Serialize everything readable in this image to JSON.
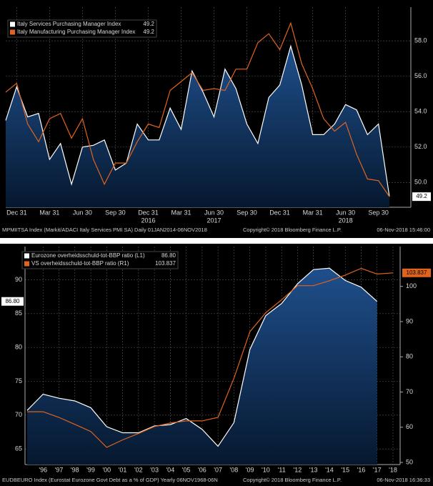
{
  "chart_data": [
    {
      "type": "line",
      "categories": [
        null,
        "Dec 31",
        null,
        null,
        "Mar 31",
        null,
        null,
        "Jun 30",
        null,
        null,
        "Sep 30",
        null,
        null,
        "Dec 31",
        null,
        null,
        "Mar 31",
        null,
        null,
        "Jun 30",
        null,
        null,
        "Sep 30",
        null,
        null,
        "Dec 31",
        null,
        null,
        "Mar 31",
        null,
        null,
        "Jun 30",
        null,
        null,
        "Sep 30",
        null
      ],
      "year_labels": [
        {
          "category": 13,
          "label": "2016"
        },
        {
          "category": 19,
          "label": "2017"
        },
        {
          "category": 31,
          "label": "2018"
        }
      ],
      "series": [
        {
          "name": "Italy Services Purchasing Manager Index",
          "legend_value": "49.2",
          "color": "#ffffff",
          "area": true,
          "values": [
            53.5,
            55.4,
            53.7,
            53.9,
            51.3,
            52.2,
            49.9,
            52.0,
            52.1,
            52.4,
            50.7,
            51.1,
            53.3,
            52.4,
            52.4,
            54.2,
            53.0,
            56.3,
            55.1,
            53.7,
            56.4,
            55.3,
            53.3,
            52.2,
            54.8,
            55.5,
            57.7,
            55.5,
            52.7,
            52.7,
            53.3,
            54.4,
            54.1,
            52.7,
            53.3,
            49.2
          ]
        },
        {
          "name": "Italy Manufacturing Purchasing Manager Index",
          "legend_value": "49.2",
          "color": "#e0641e",
          "values": [
            55.1,
            55.6,
            53.3,
            52.3,
            53.6,
            53.9,
            52.5,
            53.6,
            51.3,
            49.9,
            51.1,
            51.1,
            52.3,
            53.3,
            53.1,
            55.2,
            55.7,
            56.2,
            55.2,
            55.3,
            55.2,
            56.4,
            56.4,
            57.9,
            58.4,
            57.5,
            59.0,
            56.7,
            55.3,
            53.6,
            52.9,
            53.4,
            51.6,
            50.2,
            50.1,
            49.2
          ]
        }
      ],
      "y_axis_side": "right",
      "ylim": [
        48.6,
        59.9
      ],
      "yticks": [
        {
          "value": 50,
          "label": "50.0"
        },
        {
          "value": 52,
          "label": "52.0"
        },
        {
          "value": 54,
          "label": "54.0"
        },
        {
          "value": 56,
          "label": "56.0"
        },
        {
          "value": 58,
          "label": "58.0"
        }
      ],
      "grid": true,
      "last_value_label": "49.2",
      "footer": [
        "MPMIITSA Index (Markit/ADACI Italy Services PMI SA)  Daily 01JAN2014-06NOV2018",
        "Copyright© 2018 Bloomberg Finance L.P.",
        "06-Nov-2018 15:46:00"
      ]
    },
    {
      "type": "line",
      "categories": [
        null,
        "'96",
        "'97",
        "'98",
        "'99",
        "'00",
        "'01",
        "'02",
        "'03",
        "'04",
        "'05",
        "'06",
        "'07",
        "'08",
        "'09",
        "'10",
        "'11",
        "'12",
        "'13",
        "'14",
        "'15",
        "'16",
        "'17",
        "'18"
      ],
      "series": [
        {
          "name": "Eurozone overheidsschuld-tot-BBP ratio (L1)",
          "legend_value": "86.80",
          "color": "#ffffff",
          "area": true,
          "values": [
            70.7,
            73.1,
            72.5,
            72.1,
            71.1,
            68.3,
            67.4,
            67.4,
            68.4,
            68.6,
            69.5,
            67.9,
            65.4,
            68.9,
            79.7,
            84.7,
            86.5,
            89.4,
            91.5,
            91.7,
            89.9,
            88.9,
            86.8,
            null
          ]
        },
        {
          "name": "VS overheidsschuld-tot-BBP ratio (R1)",
          "legend_value": "103.837",
          "color": "#e0641e",
          "axis": "y2",
          "values": [
            64.4,
            64.4,
            62.8,
            60.8,
            58.8,
            54.3,
            56.4,
            58.2,
            60.2,
            61.2,
            61.8,
            61.8,
            62.8,
            73.9,
            87.1,
            92.5,
            96.2,
            100.2,
            100.2,
            101.6,
            103.2,
            105.1,
            103.5,
            103.837
          ]
        }
      ],
      "ylim": [
        62.7,
        94.9
      ],
      "yticks": [
        65,
        70,
        75,
        80,
        85,
        90
      ],
      "y2lim": [
        49.4,
        111.3
      ],
      "y2ticks": [
        50,
        60,
        70,
        80,
        90,
        100
      ],
      "grid": true,
      "footer": [
        "EUDBEURO Index (Eurostat Eurozone Govt Debt as a % of GDP)  Yearly 06NOV1968-06N",
        "Copyright© 2018 Bloomberg Finance L.P.",
        "06-Nov-2018 16:36:33"
      ]
    }
  ]
}
